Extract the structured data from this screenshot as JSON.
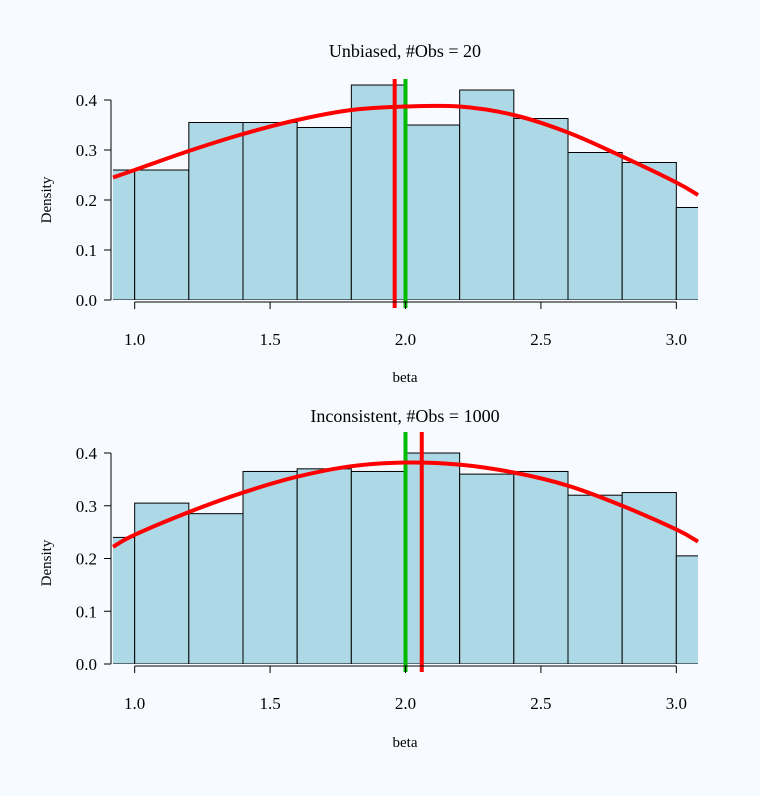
{
  "colors": {
    "background": "#f7fbff",
    "bar_fill": "#add8e6",
    "bar_stroke": "#000000",
    "density_curve": "#ff0000",
    "estimate_line": "#ff0000",
    "true_value_line": "#00bb00"
  },
  "chart_data": [
    {
      "type": "bar",
      "title": "Unbiased, #Obs = 20",
      "xlabel": "beta",
      "ylabel": "Density",
      "xlim": [
        0.92,
        3.08
      ],
      "ylim": [
        0.0,
        0.4
      ],
      "x_ticks": [
        "1.0",
        "1.5",
        "2.0",
        "2.5",
        "3.0"
      ],
      "y_ticks": [
        "0.0",
        "0.1",
        "0.2",
        "0.3",
        "0.4"
      ],
      "grid": false,
      "histogram": {
        "bin_edges": [
          0.8,
          1.0,
          1.2,
          1.4,
          1.6,
          1.8,
          2.0,
          2.2,
          2.4,
          2.6,
          2.8,
          3.0,
          3.2
        ],
        "densities": [
          0.26,
          0.26,
          0.355,
          0.355,
          0.345,
          0.43,
          0.35,
          0.42,
          0.363,
          0.295,
          0.275,
          0.185
        ]
      },
      "density_curve": {
        "x": [
          0.92,
          1.0,
          1.2,
          1.4,
          1.6,
          1.8,
          2.0,
          2.2,
          2.4,
          2.6,
          2.8,
          3.0,
          3.08
        ],
        "y": [
          0.245,
          0.26,
          0.298,
          0.332,
          0.36,
          0.38,
          0.387,
          0.387,
          0.37,
          0.335,
          0.287,
          0.235,
          0.21
        ]
      },
      "vertical_lines": [
        {
          "label": "estimate",
          "x": 1.96,
          "color": "#ff0000"
        },
        {
          "label": "true_value",
          "x": 2.0,
          "color": "#00bb00"
        }
      ]
    },
    {
      "type": "bar",
      "title": "Inconsistent, #Obs = 1000",
      "xlabel": "beta",
      "ylabel": "Density",
      "xlim": [
        0.92,
        3.08
      ],
      "ylim": [
        0.0,
        0.4
      ],
      "x_ticks": [
        "1.0",
        "1.5",
        "2.0",
        "2.5",
        "3.0"
      ],
      "y_ticks": [
        "0.0",
        "0.1",
        "0.2",
        "0.3",
        "0.4"
      ],
      "grid": false,
      "histogram": {
        "bin_edges": [
          0.8,
          1.0,
          1.2,
          1.4,
          1.6,
          1.8,
          2.0,
          2.2,
          2.4,
          2.6,
          2.8,
          3.0,
          3.2
        ],
        "densities": [
          0.24,
          0.305,
          0.285,
          0.365,
          0.37,
          0.365,
          0.4,
          0.36,
          0.365,
          0.32,
          0.325,
          0.205
        ]
      },
      "density_curve": {
        "x": [
          0.92,
          1.0,
          1.2,
          1.4,
          1.6,
          1.8,
          2.0,
          2.2,
          2.4,
          2.6,
          2.8,
          3.0,
          3.08
        ],
        "y": [
          0.222,
          0.245,
          0.288,
          0.325,
          0.355,
          0.375,
          0.382,
          0.378,
          0.363,
          0.338,
          0.3,
          0.255,
          0.232
        ]
      },
      "vertical_lines": [
        {
          "label": "true_value",
          "x": 2.0,
          "color": "#00bb00"
        },
        {
          "label": "estimate",
          "x": 2.06,
          "color": "#ff0000"
        }
      ]
    }
  ]
}
